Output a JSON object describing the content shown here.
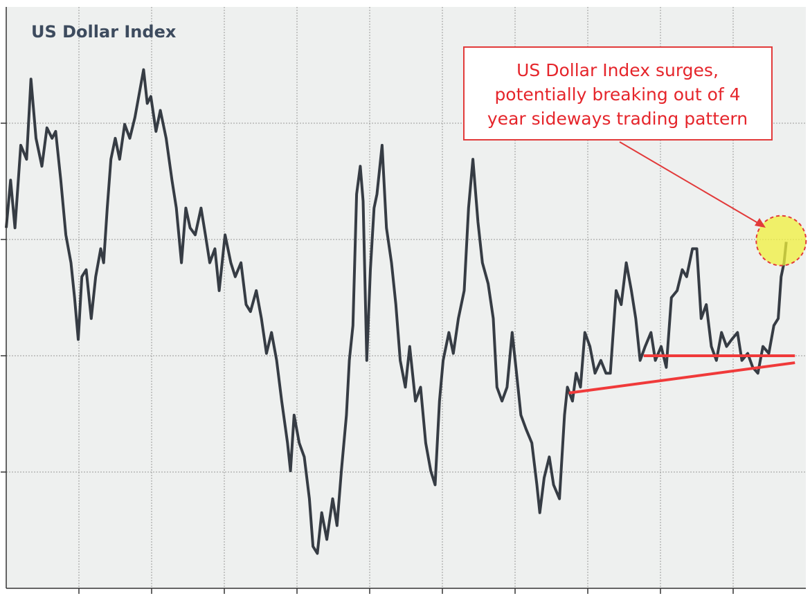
{
  "chart_data": {
    "type": "line",
    "title": "US Dollar Index",
    "x": [
      0,
      0.06,
      0.12,
      0.2,
      0.28,
      0.34,
      0.41,
      0.49,
      0.56,
      0.63,
      0.68,
      0.75,
      0.82,
      0.89,
      0.94,
      0.99,
      1.04,
      1.1,
      1.17,
      1.23,
      1.3,
      1.34,
      1.39,
      1.44,
      1.5,
      1.56,
      1.63,
      1.7,
      1.77,
      1.84,
      1.89,
      1.94,
      1.99,
      2.06,
      2.12,
      2.2,
      2.28,
      2.34,
      2.41,
      2.47,
      2.53,
      2.6,
      2.68,
      2.74,
      2.8,
      2.87,
      2.93,
      3.01,
      3.09,
      3.15,
      3.23,
      3.3,
      3.36,
      3.44,
      3.51,
      3.58,
      3.65,
      3.72,
      3.79,
      3.87,
      3.91,
      3.96,
      4.03,
      4.1,
      4.17,
      4.22,
      4.28,
      4.34,
      4.41,
      4.49,
      4.55,
      4.61,
      4.68,
      4.72,
      4.77,
      4.82,
      4.87,
      4.91,
      4.96,
      5.01,
      5.06,
      5.1,
      5.17,
      5.23,
      5.3,
      5.36,
      5.42,
      5.49,
      5.55,
      5.63,
      5.7,
      5.77,
      5.84,
      5.9,
      5.96,
      6.01,
      6.09,
      6.15,
      6.22,
      6.3,
      6.36,
      6.42,
      6.49,
      6.55,
      6.63,
      6.7,
      6.75,
      6.82,
      6.89,
      6.96,
      7.02,
      7.08,
      7.15,
      7.23,
      7.3,
      7.34,
      7.4,
      7.47,
      7.53,
      7.61,
      7.68,
      7.72,
      7.79,
      7.84,
      7.9,
      7.96,
      8.03,
      8.1,
      8.18,
      8.25,
      8.31,
      8.39,
      8.46,
      8.53,
      8.6,
      8.66,
      8.72,
      8.79,
      8.87,
      8.93,
      9.01,
      9.08,
      9.15,
      9.23,
      9.3,
      9.36,
      9.44,
      9.5,
      9.56,
      9.63,
      9.7,
      9.77,
      9.84,
      9.91,
      9.98,
      10.06,
      10.12,
      10.2,
      10.27,
      10.34,
      10.41,
      10.49,
      10.56,
      10.62,
      10.66,
      10.7,
      10.73
    ],
    "series": [
      {
        "color": "#363c44",
        "values": [
          3.1,
          3.51,
          3.1,
          3.81,
          3.69,
          4.38,
          3.87,
          3.63,
          3.96,
          3.87,
          3.93,
          3.51,
          3.04,
          2.8,
          2.5,
          2.14,
          2.68,
          2.74,
          2.32,
          2.68,
          2.92,
          2.8,
          3.27,
          3.69,
          3.87,
          3.69,
          3.99,
          3.87,
          4.05,
          4.29,
          4.46,
          4.17,
          4.23,
          3.93,
          4.11,
          3.87,
          3.51,
          3.27,
          2.8,
          3.27,
          3.1,
          3.04,
          3.27,
          3.04,
          2.8,
          2.92,
          2.56,
          3.04,
          2.8,
          2.68,
          2.8,
          2.44,
          2.38,
          2.56,
          2.32,
          2.02,
          2.2,
          1.96,
          1.61,
          1.25,
          1.01,
          1.49,
          1.25,
          1.13,
          0.77,
          0.36,
          0.3,
          0.65,
          0.42,
          0.77,
          0.54,
          1.01,
          1.49,
          1.96,
          2.26,
          3.39,
          3.63,
          3.33,
          1.96,
          2.74,
          3.27,
          3.39,
          3.81,
          3.1,
          2.8,
          2.44,
          1.96,
          1.73,
          2.08,
          1.61,
          1.73,
          1.25,
          1.01,
          0.89,
          1.61,
          1.96,
          2.2,
          2.02,
          2.32,
          2.56,
          3.27,
          3.69,
          3.15,
          2.8,
          2.62,
          2.32,
          1.73,
          1.61,
          1.73,
          2.2,
          1.85,
          1.49,
          1.37,
          1.25,
          0.89,
          0.65,
          0.95,
          1.13,
          0.89,
          0.77,
          1.49,
          1.73,
          1.61,
          1.85,
          1.73,
          2.2,
          2.08,
          1.85,
          1.96,
          1.85,
          1.85,
          2.56,
          2.44,
          2.8,
          2.56,
          2.32,
          1.96,
          2.08,
          2.2,
          1.96,
          2.08,
          1.9,
          2.5,
          2.56,
          2.74,
          2.68,
          2.92,
          2.92,
          2.32,
          2.44,
          2.08,
          1.96,
          2.2,
          2.08,
          2.14,
          2.2,
          1.96,
          2.02,
          1.9,
          1.85,
          2.08,
          2.02,
          2.26,
          2.32,
          2.68,
          2.8,
          2.98
        ]
      }
    ],
    "xlim": [
      0,
      11
    ],
    "ylim": [
      0,
      5
    ],
    "xticks": [
      1,
      2,
      3,
      4,
      5,
      6,
      7,
      8,
      9,
      10
    ],
    "yticks": [
      1,
      2,
      3,
      4
    ],
    "grid": true,
    "trend_lines": [
      {
        "color": "#f03a3a",
        "x": [
          8.77,
          10.85
        ],
        "y": [
          2.0,
          2.0
        ]
      },
      {
        "color": "#f03a3a",
        "x": [
          7.74,
          10.85
        ],
        "y": [
          1.68,
          1.94
        ]
      }
    ],
    "highlight": {
      "x": 10.66,
      "y": 2.99
    },
    "annotation": [
      "US Dollar Index surges,",
      "potentially breaking out of 4",
      "year sideways trading pattern"
    ]
  }
}
